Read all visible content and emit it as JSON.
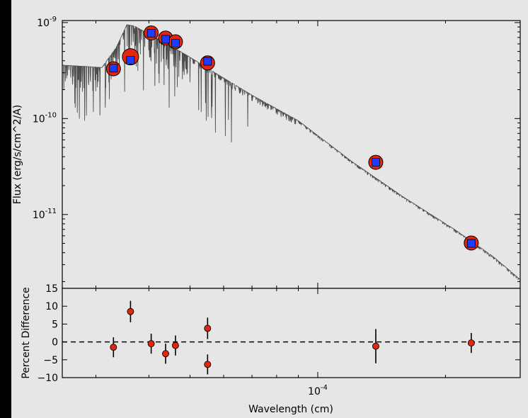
{
  "colors": {
    "background": "#000000",
    "figure_background": "#e6e6e6",
    "model_spectrum": "#4d4d4d",
    "observed_marker_fill": "#e3260f",
    "observed_marker_edge": "#000000",
    "model_marker_fill": "#1f3bff",
    "residual_marker_fill": "#e3260f",
    "errorbar": "#000000",
    "zero_line": "#000000"
  },
  "chart_data": [
    {
      "type": "scatter",
      "panel": "top",
      "title": "",
      "xlabel": "",
      "ylabel": "Flux (erg/s/cm^2/A)",
      "yscale": "log",
      "xscale": "log",
      "xlim": [
        2.5e-05,
        0.0003
      ],
      "ylim": [
        1.7e-12,
        1.05e-09
      ],
      "yticks": [
        {
          "value": 1e-11,
          "label_base": "10",
          "label_exp": "-11"
        },
        {
          "value": 1e-10,
          "label_base": "10",
          "label_exp": "-10"
        },
        {
          "value": 1e-09,
          "label_base": "10",
          "label_exp": "-9"
        }
      ],
      "grid": false,
      "legend": "none",
      "series": [
        {
          "kind": "line",
          "style": "model spectrum (dense absorption lines)",
          "x": [
            2.5e-05,
            2.8e-05,
            3.1e-05,
            3.35e-05,
            3.55e-05,
            3.7e-05,
            3.95e-05,
            4.3e-05,
            4.9e-05,
            5.8e-05,
            7e-05,
            9e-05,
            0.00012,
            0.00016,
            0.00021,
            0.00026,
            0.0003
          ],
          "y": [
            3.6e-10,
            3.5e-10,
            3.4e-10,
            5.5e-10,
            9.5e-10,
            9.2e-10,
            7.8e-10,
            6.4e-10,
            4.6e-10,
            2.9e-10,
            1.75e-10,
            9.5e-11,
            3.6e-11,
            1.5e-11,
            7e-12,
            3.6e-12,
            2.1e-12
          ]
        },
        {
          "kind": "scatter",
          "style": "observed photometry (large red circles)",
          "x": [
            3.3e-05,
            3.62e-05,
            4.05e-05,
            4.38e-05,
            4.62e-05,
            5.5e-05,
            0.000137,
            0.00023
          ],
          "y": [
            3.3e-10,
            4.4e-10,
            7.8e-10,
            6.9e-10,
            6.3e-10,
            3.8e-10,
            3.5e-11,
            5.05e-12
          ]
        },
        {
          "kind": "scatter",
          "style": "model photometry (small blue squares)",
          "x": [
            3.3e-05,
            3.62e-05,
            4.05e-05,
            4.38e-05,
            4.62e-05,
            5.5e-05,
            0.000137,
            0.00023
          ],
          "y": [
            3.35e-10,
            4.05e-10,
            7.75e-10,
            6.7e-10,
            6.1e-10,
            3.95e-10,
            3.5e-11,
            5e-12
          ]
        }
      ]
    },
    {
      "type": "scatter",
      "panel": "bottom",
      "title": "",
      "xlabel": "Wavelength (cm)",
      "ylabel": "Percent Difference",
      "xscale": "log",
      "xlim": [
        2.5e-05,
        0.0003
      ],
      "ylim": [
        -10,
        15
      ],
      "yticks": [
        {
          "value": -10,
          "label": "−10"
        },
        {
          "value": -5,
          "label": "−5"
        },
        {
          "value": 0,
          "label": "0"
        },
        {
          "value": 5,
          "label": "5"
        },
        {
          "value": 10,
          "label": "10"
        },
        {
          "value": 15,
          "label": "15"
        }
      ],
      "xticks": [
        {
          "value": 0.0001,
          "label_base": "10",
          "label_exp": "-4"
        }
      ],
      "reference_line": {
        "y": 0,
        "style": "dashed"
      },
      "grid": false,
      "legend": "none",
      "series": [
        {
          "kind": "errorbar",
          "x": [
            3.3e-05,
            3.62e-05,
            4.05e-05,
            4.38e-05,
            4.62e-05,
            5.5e-05,
            5.5e-05,
            0.000137,
            0.00023
          ],
          "y": [
            -1.5,
            8.5,
            -0.5,
            -3.3,
            -1.0,
            3.8,
            -6.3,
            -1.2,
            -0.3
          ],
          "yerr": [
            2.8,
            3.0,
            2.8,
            2.8,
            2.8,
            3.0,
            2.8,
            4.8,
            2.8
          ]
        }
      ]
    }
  ]
}
